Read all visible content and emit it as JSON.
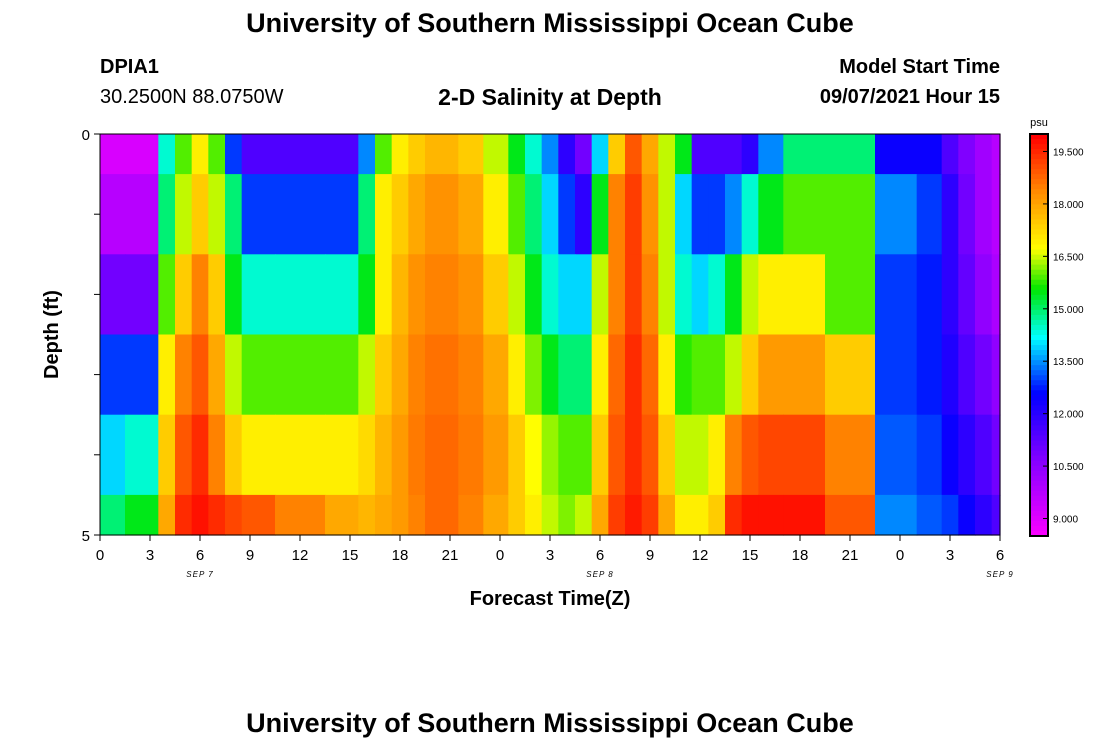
{
  "header": {
    "title": "University of Southern Mississippi Ocean Cube",
    "station": "DPIA1",
    "coords": "30.2500N  88.0750W",
    "chart_title": "2-D Salinity at Depth",
    "start_label": "Model Start Time",
    "start_time": "09/07/2021 Hour 15"
  },
  "footer": {
    "title": "University of Southern Mississippi Ocean Cube"
  },
  "chart_data": {
    "type": "heatmap",
    "title": "2-D Salinity at Depth",
    "xlabel": "Forecast Time(Z)",
    "ylabel": "Depth (ft)",
    "x_range_hours": [
      0,
      54
    ],
    "y_range_ft": [
      0,
      5
    ],
    "x_ticks": [
      "0",
      "3",
      "6",
      "9",
      "12",
      "15",
      "18",
      "21",
      "0",
      "3",
      "6",
      "9",
      "12",
      "15",
      "18",
      "21",
      "0",
      "3",
      "6"
    ],
    "y_tick_labels": [
      "0",
      "5"
    ],
    "day_labels": [
      "SEP 7",
      "SEP 8",
      "SEP 9"
    ],
    "colorbar": {
      "unit": "psu",
      "range": [
        8.5,
        20
      ],
      "tick_labels": [
        "9.000",
        "10.500",
        "12.000",
        "13.500",
        "15.000",
        "16.500",
        "18.000",
        "19.500"
      ]
    },
    "time_hours": [
      0,
      3,
      4,
      5,
      6,
      7,
      8,
      9,
      12,
      15,
      16,
      17,
      18,
      19,
      20,
      21,
      22,
      24,
      25,
      26,
      27,
      28,
      29,
      30,
      31,
      32,
      33,
      34,
      35,
      36,
      37,
      38,
      39,
      40,
      42,
      45,
      48,
      50,
      51,
      52,
      53,
      54
    ],
    "depth_rows_ft": [
      0.25,
      1.0,
      2.0,
      3.0,
      4.0,
      4.75
    ],
    "salinity_psu": [
      [
        9.2,
        9.2,
        14.5,
        16.0,
        17.0,
        16.0,
        13.0,
        11.5,
        11.5,
        11.5,
        13.5,
        16.0,
        17.0,
        17.5,
        17.8,
        17.8,
        17.5,
        16.5,
        15.5,
        14.5,
        13.5,
        12.0,
        11.0,
        14.0,
        17.5,
        19.0,
        18.0,
        16.5,
        15.5,
        11.5,
        11.5,
        11.5,
        12.0,
        13.5,
        15.0,
        15.0,
        12.5,
        12.5,
        11.5,
        10.8,
        10.2,
        9.8
      ],
      [
        9.8,
        9.8,
        15.0,
        16.5,
        17.5,
        16.5,
        15.0,
        13.0,
        13.0,
        13.0,
        15.0,
        17.0,
        17.5,
        18.0,
        18.3,
        18.3,
        18.0,
        17.0,
        16.0,
        15.0,
        14.0,
        13.0,
        12.0,
        15.5,
        18.5,
        19.3,
        18.3,
        16.5,
        14.0,
        13.0,
        13.0,
        13.5,
        14.5,
        15.5,
        16.0,
        16.0,
        13.5,
        13.0,
        12.0,
        11.0,
        10.2,
        9.8
      ],
      [
        11.0,
        11.0,
        16.0,
        17.5,
        18.5,
        17.5,
        15.5,
        14.5,
        14.5,
        14.5,
        15.5,
        17.0,
        17.8,
        18.3,
        18.5,
        18.5,
        18.3,
        17.5,
        16.5,
        15.5,
        14.5,
        14.0,
        14.0,
        16.5,
        18.5,
        19.3,
        18.5,
        16.5,
        14.5,
        14.0,
        14.5,
        15.5,
        16.5,
        17.0,
        17.0,
        16.0,
        13.0,
        12.8,
        12.0,
        11.2,
        10.5,
        10.0
      ],
      [
        13.0,
        13.0,
        17.0,
        18.5,
        19.0,
        18.0,
        16.5,
        16.0,
        16.0,
        16.0,
        16.5,
        17.5,
        18.0,
        18.5,
        18.7,
        18.7,
        18.5,
        18.0,
        17.0,
        16.2,
        15.5,
        15.0,
        15.0,
        17.0,
        18.8,
        19.5,
        18.8,
        17.0,
        15.8,
        16.0,
        16.0,
        16.5,
        17.5,
        18.2,
        18.2,
        17.5,
        13.0,
        12.8,
        12.2,
        11.5,
        11.0,
        10.5
      ],
      [
        14.0,
        14.5,
        17.5,
        19.0,
        19.5,
        18.5,
        17.5,
        17.0,
        17.0,
        17.0,
        17.3,
        17.8,
        18.2,
        18.6,
        18.8,
        18.8,
        18.6,
        18.2,
        17.5,
        16.8,
        16.3,
        16.0,
        16.0,
        17.5,
        19.0,
        19.5,
        19.0,
        17.5,
        16.5,
        16.5,
        17.0,
        18.5,
        19.0,
        19.2,
        19.2,
        18.5,
        13.2,
        13.0,
        12.5,
        12.0,
        11.5,
        11.0
      ],
      [
        15.0,
        15.5,
        18.0,
        19.5,
        19.8,
        19.5,
        19.2,
        19.0,
        18.5,
        18.0,
        17.8,
        18.0,
        18.2,
        18.5,
        18.8,
        18.8,
        18.5,
        18.0,
        17.5,
        17.0,
        16.5,
        16.2,
        16.5,
        18.0,
        19.3,
        19.7,
        19.3,
        18.0,
        17.0,
        17.0,
        17.5,
        19.5,
        19.8,
        19.8,
        19.8,
        19.0,
        13.5,
        13.2,
        13.0,
        12.5,
        12.0,
        11.5
      ]
    ]
  }
}
